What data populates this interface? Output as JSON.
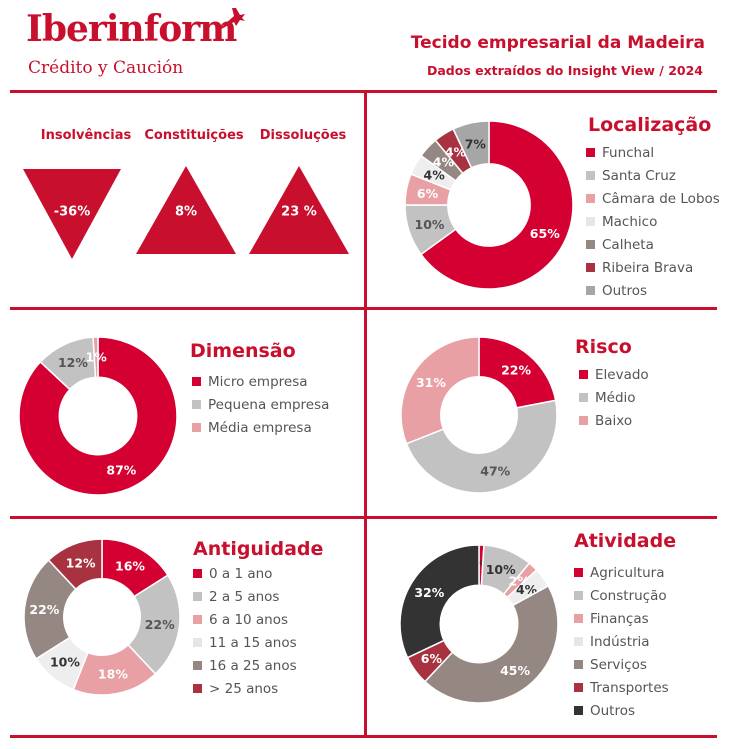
{
  "brand": {
    "name": "Iberinform",
    "tagline": "Crédito y Caución"
  },
  "header": {
    "title": "Tecido empresarial da Madeira",
    "subtitle": "Dados extraídos do Insight View / 2024"
  },
  "colors": {
    "accent": "#c8102e"
  },
  "kpis": [
    {
      "label": "Insolvências",
      "value": "-36%",
      "direction": "down"
    },
    {
      "label": "Constituições",
      "value": "8%",
      "direction": "up"
    },
    {
      "label": "Dissoluções",
      "value": "23 %",
      "direction": "up"
    }
  ],
  "chart_data": [
    {
      "type": "pie",
      "title": "Localização",
      "categories": [
        "Funchal",
        "Santa Cruz",
        "Câmara de Lobos",
        "Machico",
        "Calheta",
        "Ribeira Brava",
        "Outros"
      ],
      "values": [
        65,
        10,
        6,
        4,
        4,
        4,
        7
      ],
      "labels": [
        "65%",
        "10%",
        "6%",
        "4%",
        "4%",
        "4%",
        "7%"
      ],
      "colors": [
        "#d50032",
        "#c2c2c2",
        "#e8a0a4",
        "#eeeeee",
        "#958782",
        "#a83240",
        "#a6a6a6"
      ],
      "label_colors": [
        "#ffffff",
        "#555555",
        "#ffffff",
        "#333333",
        "#ffffff",
        "#ffffff",
        "#333333"
      ]
    },
    {
      "type": "pie",
      "title": "Dimensão",
      "categories": [
        "Micro empresa",
        "Pequena empresa",
        "Média empresa"
      ],
      "values": [
        87,
        12,
        1
      ],
      "labels": [
        "87%",
        "12%",
        "1%"
      ],
      "colors": [
        "#d50032",
        "#c2c2c2",
        "#e8a0a4"
      ],
      "label_colors": [
        "#ffffff",
        "#555555",
        "#ffffff"
      ]
    },
    {
      "type": "pie",
      "title": "Risco",
      "categories": [
        "Elevado",
        "Médio",
        "Baixo"
      ],
      "values": [
        22,
        47,
        31
      ],
      "labels": [
        "22%",
        "47%",
        "31%"
      ],
      "colors": [
        "#d50032",
        "#c2c2c2",
        "#e8a0a4"
      ],
      "label_colors": [
        "#ffffff",
        "#555555",
        "#ffffff"
      ]
    },
    {
      "type": "pie",
      "title": "Antiguidade",
      "categories": [
        "0 a 1 ano",
        "2 a 5 anos",
        "6 a 10 anos",
        "11 a 15 anos",
        "16 a 25 anos",
        "> 25 anos"
      ],
      "values": [
        16,
        22,
        18,
        10,
        22,
        12
      ],
      "labels": [
        "16%",
        "22%",
        "18%",
        "10%",
        "22%",
        "12%"
      ],
      "colors": [
        "#d50032",
        "#c2c2c2",
        "#e8a0a4",
        "#eeeeee",
        "#958782",
        "#a83240"
      ],
      "label_colors": [
        "#ffffff",
        "#555555",
        "#ffffff",
        "#333333",
        "#ffffff",
        "#ffffff"
      ]
    },
    {
      "type": "pie",
      "title": "Atividade",
      "categories": [
        "Agricultura",
        "Construção",
        "Finanças",
        "Indústria",
        "Serviços",
        "Transportes",
        "Outros"
      ],
      "values": [
        1,
        10,
        2,
        4,
        45,
        6,
        32
      ],
      "labels": [
        "1%",
        "10%",
        "2%",
        "4%",
        "45%",
        "6%",
        "32%"
      ],
      "colors": [
        "#d50032",
        "#c2c2c2",
        "#e8a0a4",
        "#eeeeee",
        "#958782",
        "#a83240",
        "#333333"
      ],
      "label_colors": [
        "#333333",
        "#333333",
        "#ffffff",
        "#333333",
        "#ffffff",
        "#ffffff",
        "#ffffff"
      ]
    }
  ]
}
